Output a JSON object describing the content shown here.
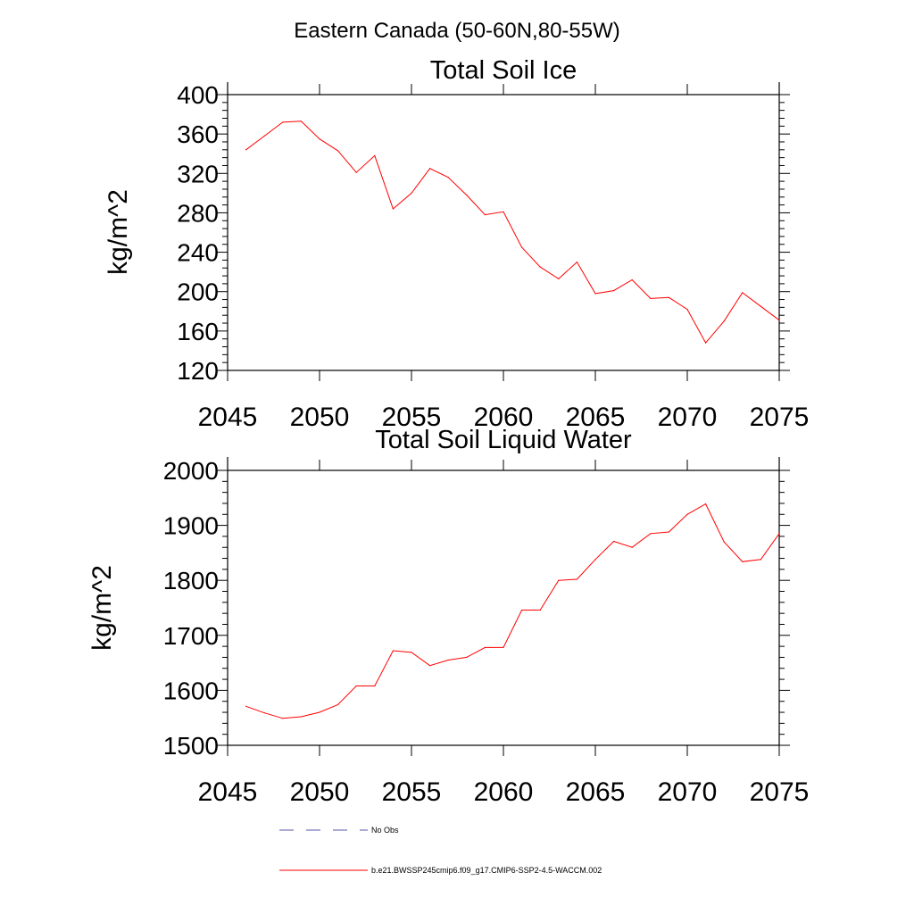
{
  "figure_title": "Eastern Canada (50-60N,80-55W)",
  "colors": {
    "series": "#ff0000",
    "obs": "#5555aa",
    "axis": "#000000"
  },
  "chart_data": [
    {
      "type": "line",
      "title": "Total Soil Ice",
      "xlabel": "",
      "ylabel": "kg/m^2",
      "xlim": [
        2045,
        2075
      ],
      "ylim": [
        120,
        400
      ],
      "x_ticks": [
        2045,
        2050,
        2055,
        2060,
        2065,
        2070,
        2075
      ],
      "y_ticks": [
        120,
        160,
        200,
        240,
        280,
        320,
        360,
        400
      ],
      "grid": false,
      "series": [
        {
          "name": "b.e21.BWSSP245cmip6.f09_g17.CMIP6-SSP2-4.5-WACCM.002",
          "x": [
            2046,
            2047,
            2048,
            2049,
            2050,
            2051,
            2052,
            2053,
            2054,
            2055,
            2056,
            2057,
            2058,
            2059,
            2060,
            2061,
            2062,
            2063,
            2064,
            2065,
            2066,
            2067,
            2068,
            2069,
            2070,
            2071,
            2072,
            2073,
            2074,
            2075
          ],
          "values": [
            344,
            358,
            372,
            373,
            355,
            343,
            321,
            338,
            284,
            300,
            325,
            316,
            298,
            278,
            281,
            245,
            225,
            213,
            230,
            198,
            201,
            212,
            193,
            194,
            182,
            148,
            170,
            199,
            185,
            171
          ]
        }
      ]
    },
    {
      "type": "line",
      "title": "Total Soil Liquid Water",
      "xlabel": "",
      "ylabel": "kg/m^2",
      "xlim": [
        2045,
        2075
      ],
      "ylim": [
        1500,
        2000
      ],
      "x_ticks": [
        2045,
        2050,
        2055,
        2060,
        2065,
        2070,
        2075
      ],
      "y_ticks": [
        1500,
        1600,
        1700,
        1800,
        1900,
        2000
      ],
      "grid": false,
      "series": [
        {
          "name": "b.e21.BWSSP245cmip6.f09_g17.CMIP6-SSP2-4.5-WACCM.002",
          "x": [
            2046,
            2047,
            2048,
            2049,
            2050,
            2051,
            2052,
            2053,
            2054,
            2055,
            2056,
            2057,
            2058,
            2059,
            2060,
            2061,
            2062,
            2063,
            2064,
            2065,
            2066,
            2067,
            2068,
            2069,
            2070,
            2071,
            2072,
            2073,
            2074,
            2075
          ],
          "values": [
            1571,
            1559,
            1549,
            1552,
            1560,
            1574,
            1608,
            1608,
            1672,
            1669,
            1645,
            1655,
            1660,
            1678,
            1678,
            1746,
            1746,
            1800,
            1802,
            1838,
            1871,
            1860,
            1885,
            1888,
            1920,
            1939,
            1870,
            1834,
            1838,
            1885
          ]
        }
      ]
    }
  ],
  "legend": {
    "placement": "bottom-left",
    "items": [
      {
        "label": "No Obs",
        "style": "dashed",
        "color": "#5555aa"
      },
      {
        "label": "b.e21.BWSSP245cmip6.f09_g17.CMIP6-SSP2-4.5-WACCM.002",
        "style": "solid",
        "color": "#ff0000"
      }
    ]
  }
}
